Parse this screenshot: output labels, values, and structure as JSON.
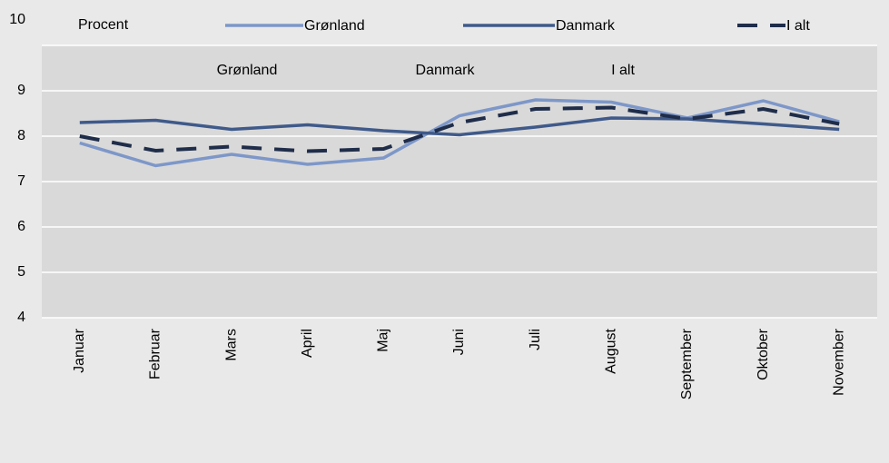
{
  "chart_data": {
    "type": "line",
    "y_label": "Procent",
    "annotations": [
      "Grønland",
      "Danmark",
      "I alt"
    ],
    "categories": [
      "Januar",
      "Februar",
      "Mars",
      "April",
      "Maj",
      "Juni",
      "Juli",
      "August",
      "September",
      "Oktober",
      "November"
    ],
    "series": [
      {
        "name": "Grønland",
        "color": "#7d97c8",
        "dashed": false,
        "values": [
          7.85,
          7.35,
          7.6,
          7.38,
          7.52,
          8.45,
          8.8,
          8.75,
          8.4,
          8.78,
          8.32
        ]
      },
      {
        "name": "Danmark",
        "color": "#3f5a8a",
        "dashed": false,
        "values": [
          8.3,
          8.35,
          8.15,
          8.25,
          8.12,
          8.03,
          8.2,
          8.4,
          8.38,
          8.27,
          8.15
        ]
      },
      {
        "name": "I alt",
        "color": "#1f2d4a",
        "dashed": true,
        "values": [
          8.0,
          7.68,
          7.77,
          7.67,
          7.72,
          8.3,
          8.6,
          8.63,
          8.38,
          8.6,
          8.27
        ]
      }
    ],
    "ylim": [
      4,
      10
    ],
    "yticks": [
      4,
      5,
      6,
      7,
      8,
      9,
      10
    ],
    "grid": true
  }
}
